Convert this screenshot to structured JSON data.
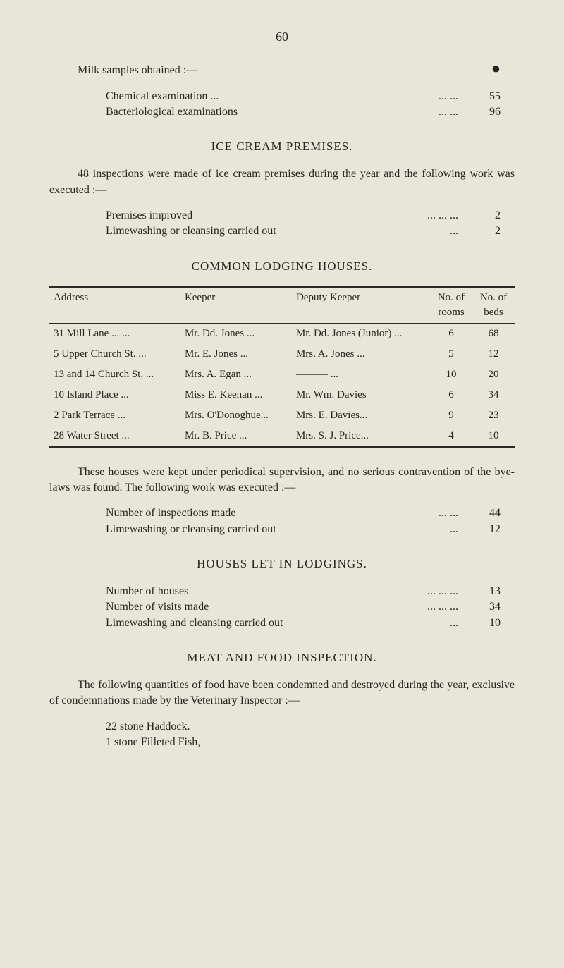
{
  "page_number": "60",
  "bullet_symbol": "●",
  "milk_section": {
    "title": "Milk samples obtained :—",
    "items": [
      {
        "label": "Chemical examination   ...",
        "value": "55"
      },
      {
        "label": "Bacteriological examinations",
        "value": "96"
      }
    ]
  },
  "ice_cream": {
    "heading": "ICE CREAM PREMISES.",
    "para": "48 inspections were made of ice cream premises during the year and the following work was executed :—",
    "items": [
      {
        "label": "Premises improved",
        "value": "2"
      },
      {
        "label": "Limewashing or cleansing carried out",
        "value": "2"
      }
    ]
  },
  "lodging": {
    "heading": "COMMON LODGING HOUSES.",
    "columns": [
      "Address",
      "Keeper",
      "Deputy Keeper",
      "No. of rooms",
      "No. of beds"
    ],
    "rows": [
      [
        "31 Mill Lane ...        ...",
        "Mr. Dd. Jones    ...",
        "Mr. Dd. Jones (Junior)    ...",
        "6",
        "68"
      ],
      [
        "5 Upper Church St.  ...",
        "Mr. E. Jones       ...",
        "Mrs. A. Jones ...",
        "5",
        "12"
      ],
      [
        "13 and 14 Church St. ...",
        "Mrs. A. Egan      ...",
        "———        ...",
        "10",
        "20"
      ],
      [
        "10 Island Place       ...",
        "Miss E. Keenan ...",
        "Mr. Wm. Davies",
        "6",
        "34"
      ],
      [
        "2 Park Terrace        ...",
        "Mrs. O'Donoghue...",
        "Mrs. E. Davies...",
        "9",
        "23"
      ],
      [
        "28 Water Street      ...",
        "Mr. B. Price        ...",
        "Mrs. S. J. Price...",
        "4",
        "10"
      ]
    ],
    "after_para": "These houses were kept under periodical supervision, and no serious contravention of the bye-laws was found.  The following work was executed :—",
    "items": [
      {
        "label": "Number of inspections made",
        "value": "44"
      },
      {
        "label": "Limewashing or cleansing carried out",
        "value": "12"
      }
    ]
  },
  "lodgings_let": {
    "heading": "HOUSES LET IN LODGINGS.",
    "items": [
      {
        "label": "Number of houses",
        "value": "13"
      },
      {
        "label": "Number of visits made",
        "value": "34"
      },
      {
        "label": "Limewashing and cleansing carried out",
        "value": "10"
      }
    ]
  },
  "meat": {
    "heading": "MEAT AND FOOD INSPECTION.",
    "para": "The following quantities of food have been condemned and destroyed during the year, exclusive of condemnations made by the Veterinary Inspector :—",
    "items": [
      "22 stone Haddock.",
      "1 stone Filleted Fish,"
    ]
  }
}
